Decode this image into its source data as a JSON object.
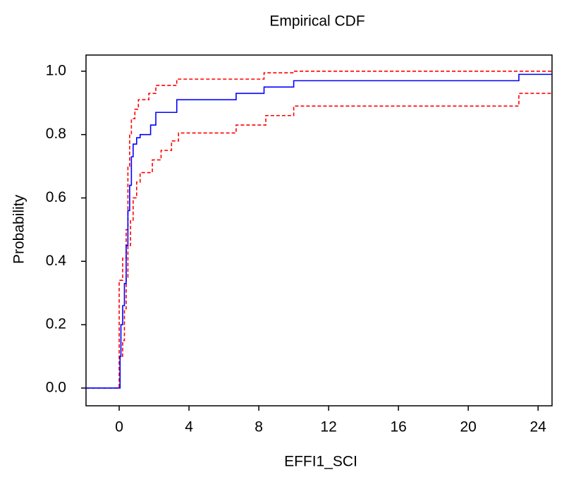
{
  "chart_data": {
    "type": "step",
    "title": "Empirical CDF",
    "xlabel": "EFFI1_SCI",
    "ylabel": "Probability",
    "xlim": [
      -1.9,
      24.8
    ],
    "ylim": [
      -0.056,
      1.051
    ],
    "xticks": [
      0,
      4,
      8,
      12,
      16,
      20,
      24
    ],
    "yticks": [
      {
        "value": 0,
        "label": "0.0"
      },
      0.2,
      0.4,
      0.6,
      0.8,
      {
        "value": 1,
        "label": "1.0"
      }
    ],
    "series": [
      {
        "color": "#0000ff",
        "linestyle": "solid",
        "x": [
          -1.9,
          0.05,
          0.1,
          0.2,
          0.3,
          0.4,
          0.5,
          0.6,
          0.7,
          0.8,
          1.0,
          1.2,
          1.8,
          2.1,
          3.3,
          6.7,
          8.3,
          10.0,
          22.9,
          24.8
        ],
        "values": [
          0,
          0.1,
          0.2,
          0.26,
          0.33,
          0.45,
          0.56,
          0.64,
          0.73,
          0.77,
          0.79,
          0.8,
          0.83,
          0.87,
          0.91,
          0.93,
          0.95,
          0.97,
          0.99,
          0.99
        ]
      },
      {
        "color": "#ff0000",
        "linestyle": "dashed",
        "x": [
          -1.9,
          0.0,
          0.2,
          0.4,
          0.5,
          0.6,
          0.7,
          0.9,
          1.1,
          1.7,
          2.1,
          3.3,
          8.3,
          10.0,
          24.8
        ],
        "values": [
          0,
          0.34,
          0.41,
          0.5,
          0.7,
          0.8,
          0.85,
          0.88,
          0.91,
          0.93,
          0.955,
          0.975,
          0.995,
          1.0,
          1.0
        ]
      },
      {
        "color": "#ff0000",
        "linestyle": "dashed",
        "x": [
          -1.9,
          0.05,
          0.2,
          0.3,
          0.4,
          0.5,
          0.65,
          0.8,
          1.0,
          1.2,
          1.9,
          2.4,
          3.0,
          3.4,
          6.7,
          8.4,
          10.0,
          22.9,
          24.8
        ],
        "values": [
          0,
          0.1,
          0.15,
          0.25,
          0.35,
          0.45,
          0.53,
          0.6,
          0.65,
          0.68,
          0.72,
          0.75,
          0.78,
          0.805,
          0.83,
          0.86,
          0.89,
          0.93,
          0.93
        ]
      }
    ]
  }
}
